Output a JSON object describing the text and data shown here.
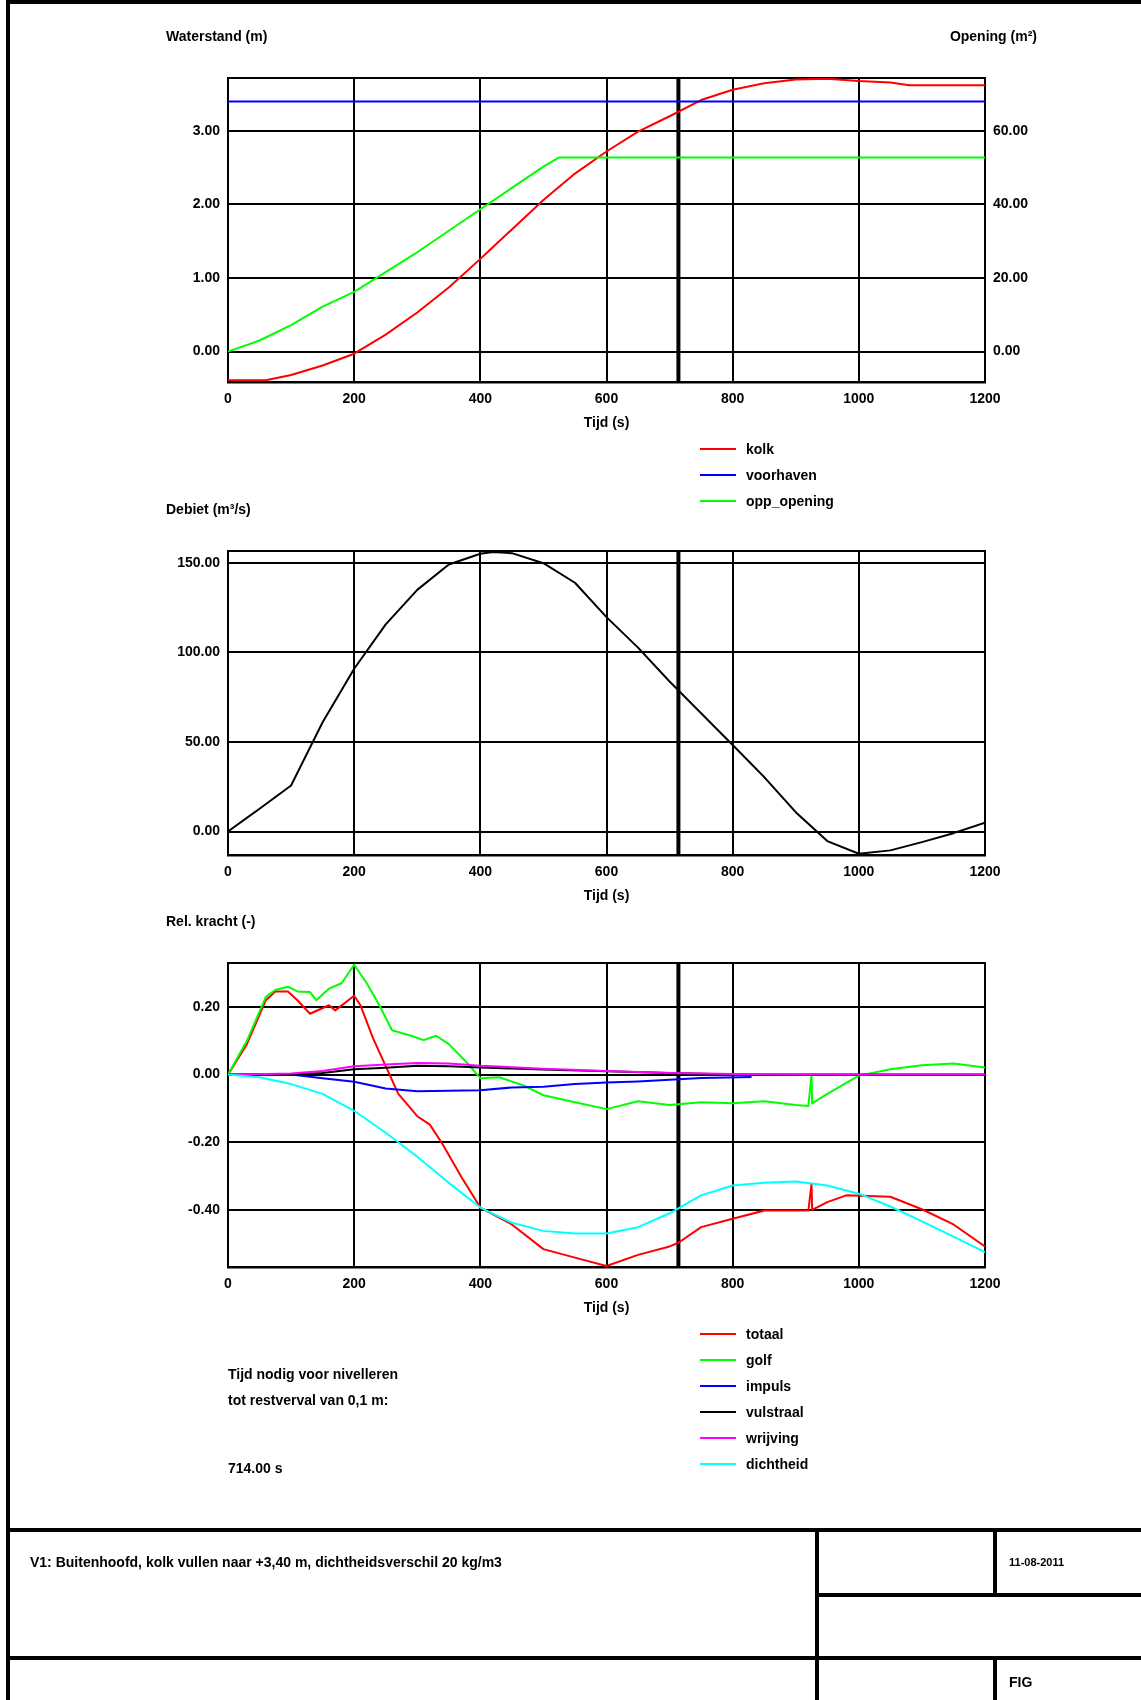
{
  "chart_data": [
    {
      "type": "line",
      "ylabel": "Waterstand (m)",
      "y2label": "Opening (m²)",
      "xlabel": "Tijd (s)",
      "legend": "bottom right",
      "grid": true,
      "marker": "none",
      "line_style": "solid",
      "xlim": [
        0,
        1200
      ],
      "xticks": [
        0,
        200,
        400,
        600,
        800,
        1000,
        1200
      ],
      "ylim": [
        -0.42,
        3.72
      ],
      "yticks": [
        {
          "value": 0,
          "label": "0.00"
        },
        {
          "value": 1,
          "label": "1.00"
        },
        {
          "value": 2,
          "label": "2.00"
        },
        {
          "value": 3,
          "label": "3.00"
        }
      ],
      "y2lim": [
        -8.4,
        74.4
      ],
      "y2ticks": [
        {
          "value": 0,
          "label": "0.00"
        },
        {
          "value": 20,
          "label": "20.00"
        },
        {
          "value": 40,
          "label": "40.00"
        },
        {
          "value": 60,
          "label": "60.00"
        }
      ],
      "ref_lines": [
        {
          "axis": "x",
          "value": 714,
          "color": "#000000"
        }
      ],
      "series": [
        {
          "name": "kolk",
          "color": "#ff0000",
          "x": [
            0,
            60,
            100,
            150,
            200,
            250,
            300,
            350,
            400,
            450,
            500,
            550,
            600,
            650,
            700,
            750,
            800,
            850,
            900,
            950,
            1000,
            1050,
            1080,
            1200
          ],
          "values": [
            -0.39,
            -0.39,
            -0.32,
            -0.19,
            -0.03,
            0.23,
            0.53,
            0.87,
            1.26,
            1.66,
            2.06,
            2.42,
            2.72,
            2.99,
            3.2,
            3.42,
            3.56,
            3.65,
            3.7,
            3.71,
            3.68,
            3.66,
            3.62,
            3.62
          ]
        },
        {
          "name": "voorhaven",
          "color": "#0000ff",
          "x": [
            0,
            1200
          ],
          "values": [
            3.4,
            3.4
          ]
        },
        {
          "name": "opp_opening",
          "color": "#00ff00",
          "axis": "y2",
          "x": [
            0,
            50,
            100,
            150,
            200,
            250,
            300,
            400,
            500,
            525,
            1200
          ],
          "values": [
            0,
            3,
            7.2,
            12.2,
            16.2,
            21.6,
            27,
            38.7,
            50.3,
            52.8,
            52.8
          ]
        }
      ]
    },
    {
      "type": "line",
      "ylabel": "Debiet (m³/s)",
      "xlabel": "Tijd (s)",
      "grid": true,
      "marker": "none",
      "line_style": "solid",
      "xlim": [
        0,
        1200
      ],
      "xticks": [
        0,
        200,
        400,
        600,
        800,
        1000,
        1200
      ],
      "ylim": [
        -13.3,
        156.5
      ],
      "yticks": [
        {
          "value": 0,
          "label": "0.00"
        },
        {
          "value": 50,
          "label": "50.00"
        },
        {
          "value": 100,
          "label": "100.00"
        },
        {
          "value": 150,
          "label": "150.00"
        }
      ],
      "ref_lines": [
        {
          "axis": "x",
          "value": 714,
          "color": "#000000"
        }
      ],
      "series": [
        {
          "color": "#000000",
          "x": [
            0,
            50,
            100,
            150,
            200,
            250,
            300,
            350,
            400,
            420,
            450,
            500,
            550,
            600,
            650,
            700,
            750,
            800,
            850,
            900,
            950,
            1000,
            1050,
            1100,
            1150,
            1200
          ],
          "values": [
            0,
            12.7,
            25.7,
            61,
            90.8,
            115.6,
            134.8,
            149,
            155,
            156,
            155.3,
            149.7,
            138.8,
            119.6,
            102.6,
            83.7,
            66,
            48.3,
            30.4,
            10.8,
            -5.3,
            -12.4,
            -10.5,
            -5.9,
            -0.9,
            5
          ]
        }
      ]
    },
    {
      "type": "line",
      "ylabel": "Rel. kracht (-)",
      "xlabel": "Tijd (s)",
      "legend": "bottom right",
      "grid": true,
      "marker": "none",
      "line_style": "solid",
      "xlim": [
        0,
        1200
      ],
      "xticks": [
        0,
        200,
        400,
        600,
        800,
        1000,
        1200
      ],
      "ylim": [
        -0.57,
        0.33
      ],
      "yticks": [
        {
          "value": -0.4,
          "label": "-0.40"
        },
        {
          "value": -0.2,
          "label": "-0.20"
        },
        {
          "value": 0,
          "label": "0.00"
        },
        {
          "value": 0.2,
          "label": "0.20"
        }
      ],
      "ref_lines": [
        {
          "axis": "x",
          "value": 714,
          "color": "#000000"
        }
      ],
      "annotations": [
        "Tijd nodig voor nivelleren",
        "tot restverval van 0,1 m:",
        "714.00 s"
      ],
      "series": [
        {
          "name": "totaal",
          "color": "#ff0000",
          "x": [
            0,
            30,
            60,
            75,
            95,
            110,
            130,
            160,
            170,
            200,
            210,
            230,
            250,
            270,
            300,
            320,
            340,
            370,
            400,
            450,
            500,
            550,
            600,
            650,
            700,
            714,
            750,
            800,
            850,
            920,
            925,
            926,
            950,
            980,
            1050,
            1100,
            1150,
            1200
          ],
          "values": [
            0,
            0.09,
            0.22,
            0.246,
            0.246,
            0.22,
            0.18,
            0.205,
            0.19,
            0.233,
            0.205,
            0.107,
            0.025,
            -0.057,
            -0.123,
            -0.148,
            -0.205,
            -0.303,
            -0.393,
            -0.443,
            -0.516,
            -0.541,
            -0.566,
            -0.533,
            -0.508,
            -0.497,
            -0.451,
            -0.426,
            -0.402,
            -0.402,
            -0.323,
            -0.4,
            -0.377,
            -0.357,
            -0.361,
            -0.398,
            -0.443,
            -0.508
          ]
        },
        {
          "name": "golf",
          "color": "#00ff00",
          "x": [
            0,
            30,
            60,
            75,
            95,
            110,
            130,
            140,
            160,
            180,
            200,
            220,
            240,
            260,
            290,
            310,
            330,
            350,
            380,
            400,
            430,
            470,
            500,
            550,
            600,
            650,
            700,
            750,
            800,
            850,
            900,
            920,
            925,
            926,
            950,
            1000,
            1050,
            1100,
            1150,
            1200
          ],
          "values": [
            0,
            0.1,
            0.23,
            0.25,
            0.26,
            0.246,
            0.244,
            0.22,
            0.254,
            0.27,
            0.325,
            0.27,
            0.205,
            0.131,
            0.115,
            0.102,
            0.115,
            0.09,
            0.033,
            -0.011,
            -0.008,
            -0.033,
            -0.061,
            -0.082,
            -0.102,
            -0.079,
            -0.09,
            -0.082,
            -0.085,
            -0.079,
            -0.09,
            -0.093,
            0,
            -0.085,
            -0.057,
            -0.003,
            0.016,
            0.028,
            0.033,
            0.021
          ]
        },
        {
          "name": "impuls",
          "color": "#0000ff",
          "x": [
            0,
            100,
            150,
            200,
            250,
            300,
            400,
            450,
            500,
            550,
            600,
            650,
            700,
            750,
            830
          ],
          "values": [
            0,
            0,
            -0.011,
            -0.021,
            -0.041,
            -0.049,
            -0.046,
            -0.038,
            -0.036,
            -0.028,
            -0.023,
            -0.02,
            -0.015,
            -0.01,
            -0.007
          ]
        },
        {
          "name": "vulstraal",
          "color": "#000000",
          "x": [
            0,
            100,
            150,
            200,
            250,
            300,
            350,
            400,
            450,
            500,
            600,
            700,
            800,
            1200
          ],
          "values": [
            0,
            0,
            0.005,
            0.016,
            0.02,
            0.026,
            0.025,
            0.021,
            0.018,
            0.015,
            0.01,
            0.005,
            0,
            0
          ]
        },
        {
          "name": "wrijving",
          "color": "#ff00ff",
          "x": [
            0,
            100,
            150,
            200,
            250,
            300,
            350,
            400,
            450,
            500,
            600,
            700,
            800,
            900,
            1200
          ],
          "values": [
            0,
            0.003,
            0.011,
            0.025,
            0.03,
            0.034,
            0.033,
            0.026,
            0.022,
            0.017,
            0.011,
            0.005,
            0.002,
            0,
            0
          ]
        },
        {
          "name": "dichtheid",
          "color": "#00ffff",
          "x": [
            0,
            50,
            100,
            150,
            200,
            250,
            300,
            350,
            400,
            450,
            500,
            550,
            600,
            650,
            700,
            750,
            800,
            850,
            900,
            950,
            1000,
            1050,
            1100,
            1150,
            1200
          ],
          "values": [
            0,
            -0.008,
            -0.028,
            -0.057,
            -0.107,
            -0.172,
            -0.243,
            -0.32,
            -0.393,
            -0.438,
            -0.462,
            -0.47,
            -0.47,
            -0.451,
            -0.41,
            -0.357,
            -0.328,
            -0.32,
            -0.316,
            -0.328,
            -0.352,
            -0.39,
            -0.434,
            -0.479,
            -0.525
          ]
        }
      ]
    },
    {
      "type": "other",
      "annotations": [
        "V1: Buitenhoofd, kolk vullen naar +3,40 m, dichtheidsverschil 20 kg/m3",
        "11-08-2011",
        "FIG"
      ]
    }
  ]
}
